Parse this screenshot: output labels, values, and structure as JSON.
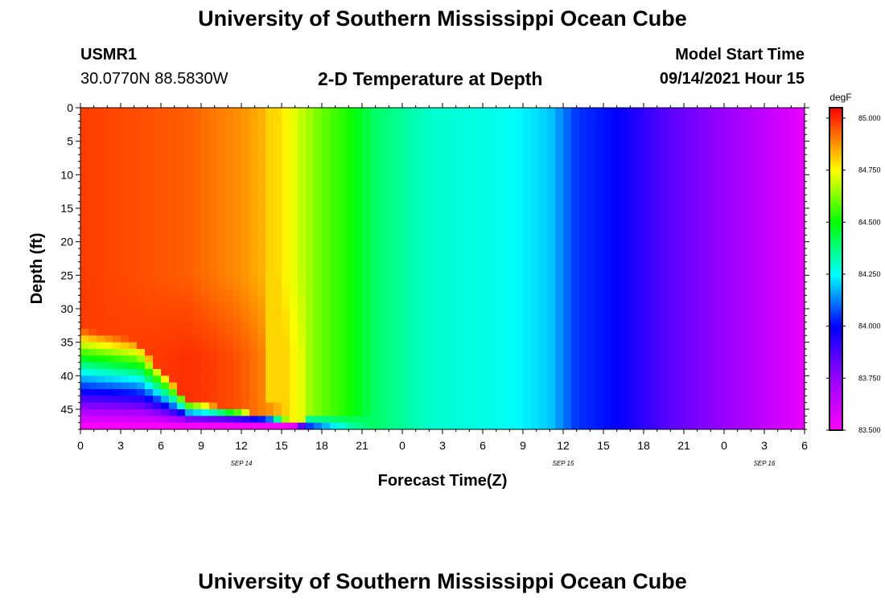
{
  "header": {
    "title": "University of Southern Mississippi Ocean Cube",
    "station_id": "USMR1",
    "coordinates": "30.0770N  88.5830W",
    "plot_title": "2-D Temperature at Depth",
    "model_start_label": "Model Start Time",
    "model_start_value": "09/14/2021 Hour 15"
  },
  "footer": {
    "title": "University of Southern Mississippi Ocean Cube"
  },
  "chart_data": {
    "type": "heatmap",
    "title": "2-D Temperature at Depth",
    "xlabel": "Forecast Time(Z)",
    "ylabel": "Depth (ft)",
    "x_tick_labels": [
      "0",
      "3",
      "6",
      "9",
      "12",
      "15",
      "18",
      "21",
      "0",
      "3",
      "6",
      "9",
      "12",
      "15",
      "18",
      "21",
      "0",
      "3",
      "6"
    ],
    "x_hours": [
      0,
      3,
      6,
      9,
      12,
      15,
      18,
      21,
      24,
      27,
      30,
      33,
      36,
      39,
      42,
      45,
      48,
      51,
      54
    ],
    "x_range": [
      0,
      54
    ],
    "date_labels": [
      {
        "label": "SEP 14",
        "hour": 12
      },
      {
        "label": "SEP 15",
        "hour": 36
      },
      {
        "label": "SEP 16",
        "hour": 51
      }
    ],
    "y_ticks": [
      0,
      5,
      10,
      15,
      20,
      25,
      30,
      35,
      40,
      45
    ],
    "y_range": [
      0,
      48
    ],
    "y_inverted": true,
    "colorbar": {
      "unit": "degF",
      "range": [
        83.5,
        85.05
      ],
      "tick_labels": [
        "85.000",
        "84.750",
        "84.500",
        "84.250",
        "84.000",
        "83.750",
        "83.500"
      ],
      "tick_values": [
        85.0,
        84.75,
        84.5,
        84.25,
        84.0,
        83.75,
        83.5
      ],
      "colors": [
        {
          "value": 83.5,
          "color": "#ff00ff"
        },
        {
          "value": 83.75,
          "color": "#9900ff"
        },
        {
          "value": 84.0,
          "color": "#0000ff"
        },
        {
          "value": 84.25,
          "color": "#00ffff"
        },
        {
          "value": 84.5,
          "color": "#00ff00"
        },
        {
          "value": 84.75,
          "color": "#ffff00"
        },
        {
          "value": 84.9,
          "color": "#ff8000"
        },
        {
          "value": 85.05,
          "color": "#ff0000"
        }
      ]
    },
    "surface_profile": [
      {
        "hour": 0,
        "temp": 84.98
      },
      {
        "hour": 8,
        "temp": 84.94
      },
      {
        "hour": 12,
        "temp": 84.88
      },
      {
        "hour": 14,
        "temp": 84.83
      },
      {
        "hour": 15,
        "temp": 84.78
      },
      {
        "hour": 16,
        "temp": 84.72
      },
      {
        "hour": 18,
        "temp": 84.6
      },
      {
        "hour": 20,
        "temp": 84.52
      },
      {
        "hour": 22,
        "temp": 84.4
      },
      {
        "hour": 26,
        "temp": 84.3
      },
      {
        "hour": 32,
        "temp": 84.26
      },
      {
        "hour": 35,
        "temp": 84.2
      },
      {
        "hour": 37,
        "temp": 84.05
      },
      {
        "hour": 40,
        "temp": 84.0
      },
      {
        "hour": 44,
        "temp": 83.85
      },
      {
        "hour": 48,
        "temp": 83.75
      },
      {
        "hour": 54,
        "temp": 83.55
      }
    ],
    "bottom_layer": {
      "description_depth_start_ft": 33,
      "bottom_temp": 83.5,
      "extent_hours": 17
    }
  }
}
